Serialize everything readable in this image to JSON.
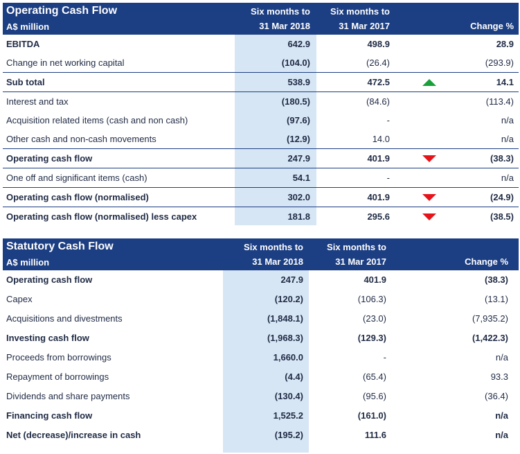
{
  "operating": {
    "title": "Operating Cash Flow",
    "subtitle": "A$ million",
    "col_a": [
      "Six months to",
      "31 Mar 2018"
    ],
    "col_b": [
      "Six months to",
      "31 Mar 2017"
    ],
    "col_c": "Change %",
    "rows": [
      {
        "label": "EBITDA",
        "a": "642.9",
        "b": "498.9",
        "c": "28.9",
        "bold": true,
        "border": false,
        "indicator": ""
      },
      {
        "label": "Change in net working capital",
        "a": "(104.0)",
        "b": "(26.4)",
        "c": "(293.9)",
        "bold": false,
        "border": false,
        "indicator": ""
      },
      {
        "label": "Sub total",
        "a": "538.9",
        "b": "472.5",
        "c": "14.1",
        "bold": true,
        "border": true,
        "indicator": "up"
      },
      {
        "label": "Interest and tax",
        "a": "(180.5)",
        "b": "(84.6)",
        "c": "(113.4)",
        "bold": false,
        "border": true,
        "indicator": ""
      },
      {
        "label": "Acquisition related items (cash and non cash)",
        "a": "(97.6)",
        "b": "-",
        "c": "n/a",
        "bold": false,
        "border": false,
        "indicator": ""
      },
      {
        "label": "Other cash and non-cash movements",
        "a": "(12.9)",
        "b": "14.0",
        "c": "n/a",
        "bold": false,
        "border": false,
        "indicator": ""
      },
      {
        "label": "Operating cash flow",
        "a": "247.9",
        "b": "401.9",
        "c": "(38.3)",
        "bold": true,
        "border": true,
        "indicator": "down"
      },
      {
        "label": "One off and significant items (cash)",
        "a": "54.1",
        "b": "-",
        "c": "n/a",
        "bold": false,
        "border": true,
        "indicator": ""
      },
      {
        "label": "Operating cash flow (normalised)",
        "a": "302.0",
        "b": "401.9",
        "c": "(24.9)",
        "bold": true,
        "border": true,
        "indicator": "down"
      },
      {
        "label": "Operating cash flow (normalised) less capex",
        "a": "181.8",
        "b": "295.6",
        "c": "(38.5)",
        "bold": true,
        "border": true,
        "indicator": "down"
      }
    ]
  },
  "statutory": {
    "title": "Statutory Cash Flow",
    "subtitle": "A$ million",
    "col_a": [
      "Six months to",
      "31 Mar 2018"
    ],
    "col_b": [
      "Six months to",
      "31 Mar 2017"
    ],
    "col_c": "Change %",
    "rows": [
      {
        "label": "Operating cash flow",
        "a": "247.9",
        "b": "401.9",
        "c": "(38.3)",
        "bold": true,
        "border": false
      },
      {
        "label": "Capex",
        "a": "(120.2)",
        "b": "(106.3)",
        "c": "(13.1)",
        "bold": false,
        "border": false
      },
      {
        "label": "Acquisitions and divestments",
        "a": "(1,848.1)",
        "b": "(23.0)",
        "c": "(7,935.2)",
        "bold": false,
        "border": false
      },
      {
        "label": "Investing cash flow",
        "a": "(1,968.3)",
        "b": "(129.3)",
        "c": "(1,422.3)",
        "bold": true,
        "border": false
      },
      {
        "label": "Proceeds from borrowings",
        "a": "1,660.0",
        "b": "-",
        "c": "n/a",
        "bold": false,
        "border": false
      },
      {
        "label": "Repayment of borrowings",
        "a": "(4.4)",
        "b": "(65.4)",
        "c": "93.3",
        "bold": false,
        "border": false
      },
      {
        "label": "Dividends and share payments",
        "a": "(130.4)",
        "b": "(95.6)",
        "c": "(36.4)",
        "bold": false,
        "border": false
      },
      {
        "label": "Financing cash flow",
        "a": "1,525.2",
        "b": "(161.0)",
        "c": "n/a",
        "bold": true,
        "border": false
      },
      {
        "label": "Net (decrease)/increase in cash",
        "a": "(195.2)",
        "b": "111.6",
        "c": "n/a",
        "bold": true,
        "border": false
      }
    ]
  }
}
